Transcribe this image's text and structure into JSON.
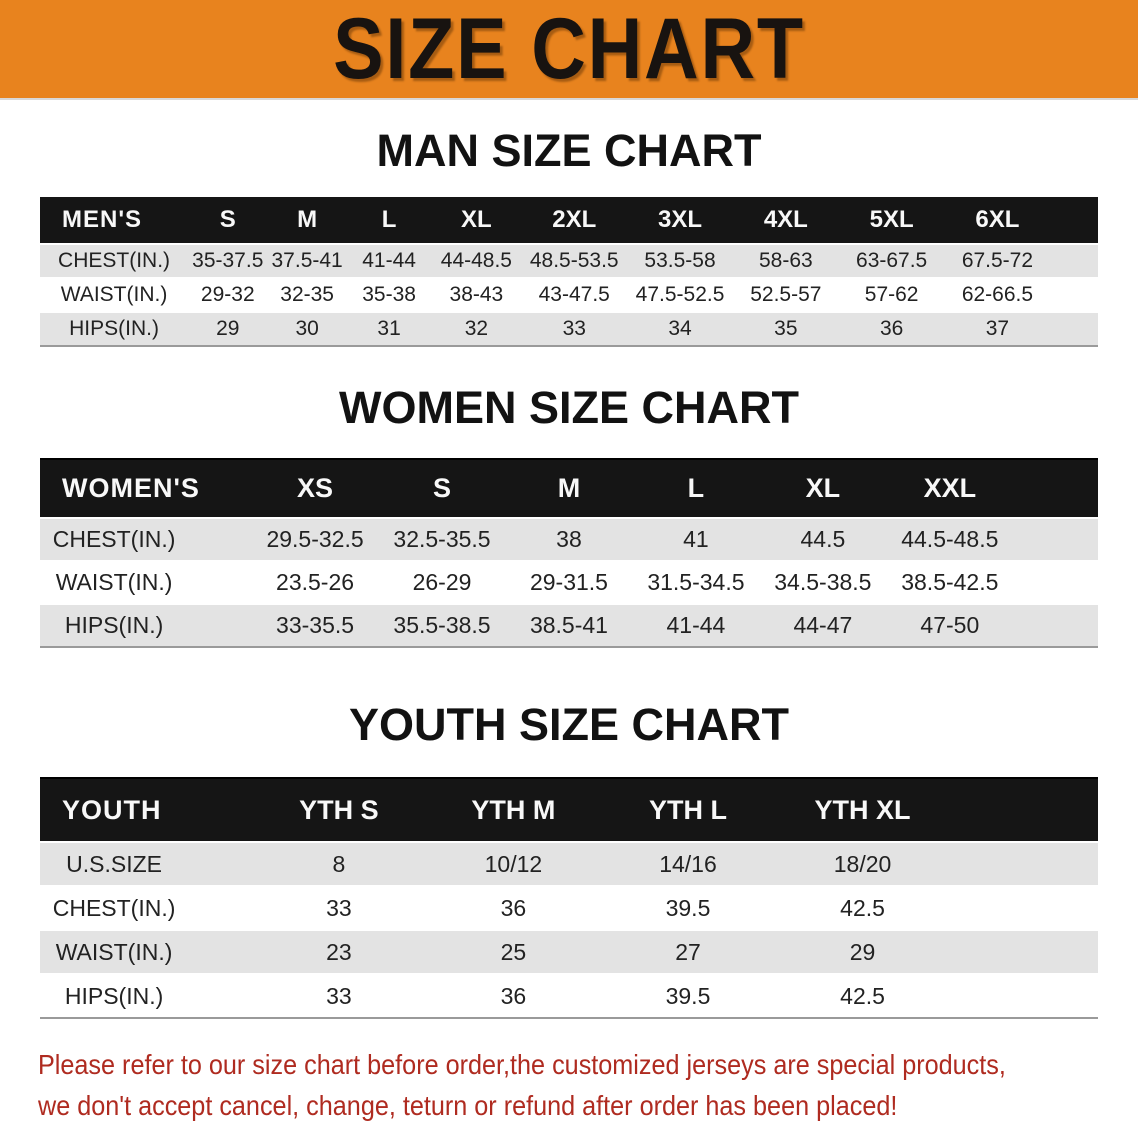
{
  "banner": {
    "title": "SIZE CHART"
  },
  "colors": {
    "banner_bg": "#E8831E",
    "header_bar": "#151515",
    "row_stripe": "#E3E3E3",
    "disclaimer_text": "#AF2B20"
  },
  "sections": [
    {
      "heading": "MAN SIZE CHART",
      "table": {
        "header_label": "MEN'S",
        "columns": [
          "S",
          "M",
          "L",
          "XL",
          "2XL",
          "3XL",
          "4XL",
          "5XL",
          "6XL"
        ],
        "rows": [
          {
            "label": "CHEST(IN.)",
            "values": [
              "35-37.5",
              "37.5-41",
              "41-44",
              "44-48.5",
              "48.5-53.5",
              "53.5-58",
              "58-63",
              "63-67.5",
              "67.5-72"
            ]
          },
          {
            "label": "WAIST(IN.)",
            "values": [
              "29-32",
              "32-35",
              "35-38",
              "38-43",
              "43-47.5",
              "47.5-52.5",
              "52.5-57",
              "57-62",
              "62-66.5"
            ]
          },
          {
            "label": "HIPS(IN.)",
            "values": [
              "29",
              "30",
              "31",
              "32",
              "33",
              "34",
              "35",
              "36",
              "37"
            ]
          }
        ]
      }
    },
    {
      "heading": "WOMEN SIZE CHART",
      "table": {
        "header_label": "WOMEN'S",
        "columns": [
          "XS",
          "S",
          "M",
          "L",
          "XL",
          "XXL"
        ],
        "rows": [
          {
            "label": "CHEST(IN.)",
            "values": [
              "29.5-32.5",
              "32.5-35.5",
              "38",
              "41",
              "44.5",
              "44.5-48.5"
            ]
          },
          {
            "label": "WAIST(IN.)",
            "values": [
              "23.5-26",
              "26-29",
              "29-31.5",
              "31.5-34.5",
              "34.5-38.5",
              "38.5-42.5"
            ]
          },
          {
            "label": "HIPS(IN.)",
            "values": [
              "33-35.5",
              "35.5-38.5",
              "38.5-41",
              "41-44",
              "44-47",
              "47-50"
            ]
          }
        ]
      }
    },
    {
      "heading": "YOUTH SIZE CHART",
      "table": {
        "header_label": "YOUTH",
        "columns": [
          "YTH S",
          "YTH M",
          "YTH L",
          "YTH XL"
        ],
        "rows": [
          {
            "label": "U.S.SIZE",
            "values": [
              "8",
              "10/12",
              "14/16",
              "18/20"
            ]
          },
          {
            "label": "CHEST(IN.)",
            "values": [
              "33",
              "36",
              "39.5",
              "42.5"
            ]
          },
          {
            "label": "WAIST(IN.)",
            "values": [
              "23",
              "25",
              "27",
              "29"
            ]
          },
          {
            "label": "HIPS(IN.)",
            "values": [
              "33",
              "36",
              "39.5",
              "42.5"
            ]
          }
        ]
      }
    }
  ],
  "disclaimer": {
    "line1": "Please refer to our size chart before order,the customized jerseys are special products,",
    "line2": "we don't accept cancel, change, teturn or refund after order has been placed!"
  }
}
